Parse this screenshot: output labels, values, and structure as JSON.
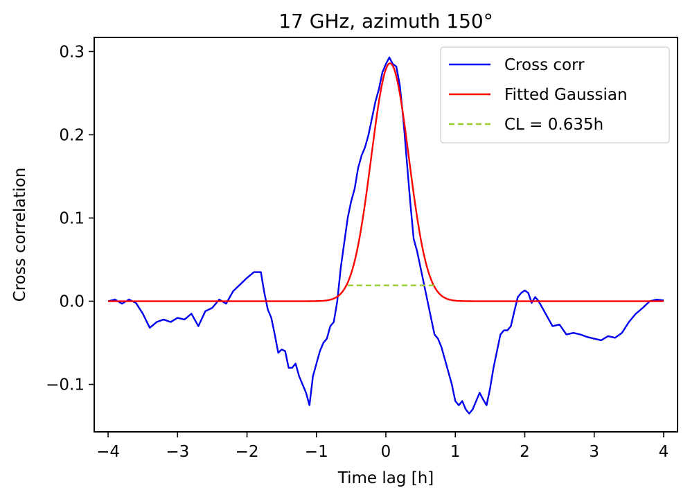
{
  "chart_data": {
    "type": "line",
    "title": "17 GHz, azimuth 150°",
    "xlabel": "Time lag [h]",
    "ylabel": "Cross correlation",
    "xlim": [
      -4.2,
      4.2
    ],
    "ylim": [
      -0.157,
      0.317
    ],
    "xticks": [
      -4,
      -3,
      -2,
      -1,
      0,
      1,
      2,
      3,
      4
    ],
    "xtick_labels": [
      "−4",
      "−3",
      "−2",
      "−1",
      "0",
      "1",
      "2",
      "3",
      "4"
    ],
    "yticks": [
      -0.1,
      0.0,
      0.1,
      0.2,
      0.3
    ],
    "ytick_labels": [
      "−0.1",
      "0.0",
      "0.1",
      "0.2",
      "0.3"
    ],
    "grid": false,
    "legend_position": "top-right",
    "series": [
      {
        "name": "Cross corr",
        "color": "#0000ee",
        "style": "solid",
        "x": [
          -4.0,
          -3.9,
          -3.8,
          -3.7,
          -3.6,
          -3.5,
          -3.4,
          -3.3,
          -3.2,
          -3.1,
          -3.0,
          -2.9,
          -2.8,
          -2.7,
          -2.6,
          -2.5,
          -2.4,
          -2.3,
          -2.2,
          -2.1,
          -2.0,
          -1.9,
          -1.8,
          -1.75,
          -1.7,
          -1.65,
          -1.6,
          -1.55,
          -1.5,
          -1.45,
          -1.4,
          -1.35,
          -1.3,
          -1.25,
          -1.2,
          -1.15,
          -1.1,
          -1.05,
          -1.0,
          -0.95,
          -0.9,
          -0.85,
          -0.8,
          -0.75,
          -0.7,
          -0.65,
          -0.6,
          -0.55,
          -0.5,
          -0.45,
          -0.4,
          -0.35,
          -0.3,
          -0.25,
          -0.2,
          -0.15,
          -0.1,
          -0.05,
          0.0,
          0.05,
          0.1,
          0.15,
          0.2,
          0.25,
          0.3,
          0.35,
          0.4,
          0.45,
          0.5,
          0.55,
          0.6,
          0.65,
          0.7,
          0.75,
          0.8,
          0.85,
          0.9,
          0.95,
          1.0,
          1.05,
          1.1,
          1.15,
          1.2,
          1.25,
          1.3,
          1.35,
          1.4,
          1.45,
          1.5,
          1.55,
          1.6,
          1.65,
          1.7,
          1.75,
          1.8,
          1.85,
          1.9,
          1.95,
          2.0,
          2.05,
          2.1,
          2.15,
          2.2,
          2.3,
          2.4,
          2.5,
          2.6,
          2.7,
          2.8,
          2.9,
          3.0,
          3.1,
          3.2,
          3.3,
          3.4,
          3.5,
          3.6,
          3.7,
          3.8,
          3.9,
          4.0
        ],
        "y": [
          0.0,
          0.002,
          -0.003,
          0.002,
          -0.002,
          -0.015,
          -0.032,
          -0.025,
          -0.022,
          -0.025,
          -0.02,
          -0.022,
          -0.015,
          -0.03,
          -0.012,
          -0.008,
          0.002,
          -0.003,
          0.012,
          0.02,
          0.028,
          0.035,
          0.035,
          0.01,
          -0.01,
          -0.02,
          -0.04,
          -0.062,
          -0.058,
          -0.06,
          -0.08,
          -0.08,
          -0.075,
          -0.09,
          -0.1,
          -0.11,
          -0.125,
          -0.09,
          -0.075,
          -0.06,
          -0.05,
          -0.045,
          -0.03,
          -0.025,
          0.0,
          0.04,
          0.07,
          0.1,
          0.12,
          0.135,
          0.16,
          0.175,
          0.185,
          0.2,
          0.22,
          0.24,
          0.255,
          0.275,
          0.285,
          0.293,
          0.285,
          0.282,
          0.26,
          0.22,
          0.17,
          0.12,
          0.075,
          0.06,
          0.04,
          0.02,
          0.0,
          -0.02,
          -0.04,
          -0.045,
          -0.055,
          -0.07,
          -0.085,
          -0.1,
          -0.12,
          -0.125,
          -0.12,
          -0.13,
          -0.135,
          -0.13,
          -0.12,
          -0.11,
          -0.118,
          -0.125,
          -0.105,
          -0.08,
          -0.06,
          -0.04,
          -0.035,
          -0.035,
          -0.03,
          -0.012,
          0.005,
          0.01,
          0.013,
          0.01,
          -0.002,
          0.005,
          0.0,
          -0.015,
          -0.03,
          -0.028,
          -0.04,
          -0.038,
          -0.04,
          -0.043,
          -0.045,
          -0.047,
          -0.042,
          -0.044,
          -0.038,
          -0.025,
          -0.015,
          -0.008,
          0.0,
          0.002,
          0.001
        ]
      },
      {
        "name": "Fitted Gaussian",
        "color": "#ff0000",
        "style": "solid",
        "gaussian": {
          "amplitude": 0.286,
          "center": 0.06,
          "sigma": 0.27,
          "offset": 0.0
        }
      },
      {
        "name": "CL = 0.635h",
        "color": "#9acd32",
        "style": "dashed",
        "x": [
          -0.55,
          0.7
        ],
        "y": [
          0.019,
          0.019
        ]
      }
    ]
  }
}
